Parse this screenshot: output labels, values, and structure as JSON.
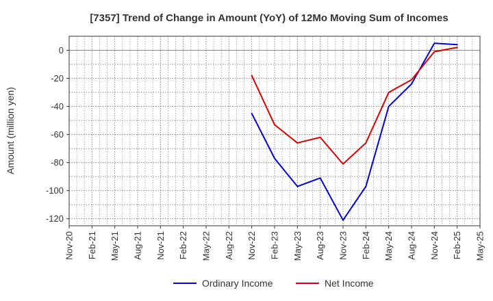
{
  "chart_data": {
    "type": "line",
    "title": "[7357]  Trend of Change in Amount (YoY) of 12Mo Moving Sum of Incomes",
    "xlabel": "",
    "ylabel": "Amount (million yen)",
    "x_ticks": [
      "Nov-20",
      "Feb-21",
      "May-21",
      "Aug-21",
      "Nov-21",
      "Feb-22",
      "May-22",
      "Aug-22",
      "Nov-22",
      "Feb-23",
      "May-23",
      "Aug-23",
      "Nov-23",
      "Feb-24",
      "May-24",
      "Aug-24",
      "Nov-24",
      "Feb-25",
      "May-25"
    ],
    "y_ticks": [
      0,
      -20,
      -40,
      -60,
      -80,
      -100,
      -120
    ],
    "ylim": [
      -125,
      10
    ],
    "grid": true,
    "legend_position": "bottom",
    "series": [
      {
        "name": "Ordinary Income",
        "color": "#0000dd",
        "points": [
          {
            "x": "Nov-22",
            "y": -45
          },
          {
            "x": "Feb-23",
            "y": -77
          },
          {
            "x": "May-23",
            "y": -97
          },
          {
            "x": "Aug-23",
            "y": -91
          },
          {
            "x": "Nov-23",
            "y": -121
          },
          {
            "x": "Feb-24",
            "y": -97
          },
          {
            "x": "May-24",
            "y": -40
          },
          {
            "x": "Aug-24",
            "y": -24
          },
          {
            "x": "Nov-24",
            "y": 5
          },
          {
            "x": "Feb-25",
            "y": 4
          }
        ]
      },
      {
        "name": "Net Income",
        "color": "#dd0000",
        "points": [
          {
            "x": "Nov-22",
            "y": -18
          },
          {
            "x": "Feb-23",
            "y": -53
          },
          {
            "x": "May-23",
            "y": -66
          },
          {
            "x": "Aug-23",
            "y": -62
          },
          {
            "x": "Nov-23",
            "y": -81
          },
          {
            "x": "Feb-24",
            "y": -66
          },
          {
            "x": "May-24",
            "y": -30
          },
          {
            "x": "Aug-24",
            "y": -21
          },
          {
            "x": "Nov-24",
            "y": -1
          },
          {
            "x": "Feb-25",
            "y": 2
          }
        ]
      }
    ]
  }
}
